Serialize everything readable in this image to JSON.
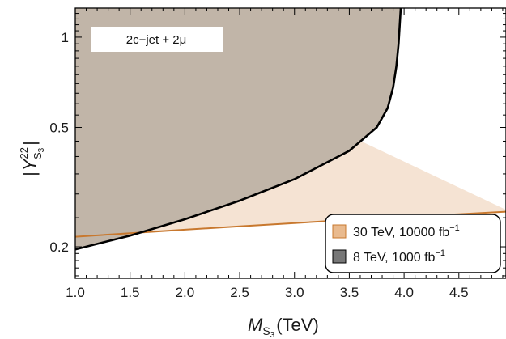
{
  "chart_data": {
    "type": "area",
    "xlabel": "M_S3 (TeV)",
    "ylabel": "|Y_S3^22|",
    "xlim": [
      1.0,
      4.93
    ],
    "ylim": [
      0.157,
      1.25
    ],
    "yscale": "log",
    "x_ticks": [
      "1.0",
      "1.5",
      "2.0",
      "2.5",
      "3.0",
      "3.5",
      "4.0",
      "4.5"
    ],
    "x_tick_values": [
      1.0,
      1.5,
      2.0,
      2.5,
      3.0,
      3.5,
      4.0,
      4.5
    ],
    "y_ticks": [
      "0.2",
      "0.5",
      "1"
    ],
    "y_tick_values": [
      0.2,
      0.5,
      1.0
    ],
    "annotation": "2c−jet + 2μ",
    "legend_position": "bottom-right",
    "series": [
      {
        "name": "30 TeV, 10000 fb",
        "name_superscript": "−1",
        "fill_color": "#f5e3d3",
        "line_color": "#c8782e",
        "region": "above",
        "x": [
          1.0,
          1.5,
          2.0,
          2.5,
          3.0,
          3.5,
          4.0,
          4.5,
          4.93
        ],
        "y": [
          0.216,
          0.222,
          0.228,
          0.234,
          0.24,
          0.246,
          0.252,
          0.257,
          0.262
        ]
      },
      {
        "name": "8 TeV, 1000 fb",
        "name_superscript": "−1",
        "fill_color": "#c1b5a8",
        "line_color": "#000000",
        "region": "above",
        "x": [
          1.0,
          1.5,
          2.0,
          2.5,
          3.0,
          3.5,
          3.75,
          3.85,
          3.9,
          3.93,
          3.95,
          3.97
        ],
        "y": [
          0.196,
          0.218,
          0.247,
          0.285,
          0.336,
          0.418,
          0.5,
          0.58,
          0.68,
          0.8,
          0.95,
          1.25
        ]
      }
    ]
  }
}
